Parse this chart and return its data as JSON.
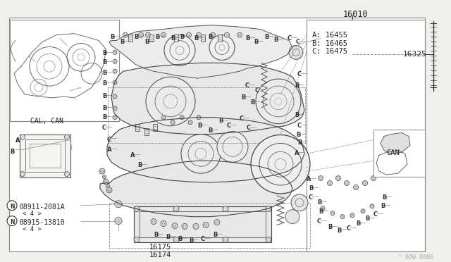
{
  "bg_color": "#ffffff",
  "outer_bg": "#f0f0eb",
  "title_number": "16010",
  "part_16325": "16325",
  "part_16455": "A: 16455",
  "part_16465": "B: 16465",
  "part_16475": "C: 16475",
  "part_16175": "16175",
  "part_16174": "16174",
  "part_08911": "08911-2081A",
  "part_08911_qty": "〈 4 〉",
  "part_08915": "08915-13810",
  "part_08915_qty": "〈 4 〉",
  "label_cal_can": "CAL, CAN",
  "label_can": "CAN",
  "watermark": "^ 60W 0006",
  "lc": "#333333",
  "tc": "#222222",
  "gray": "#888888",
  "ltgray": "#aaaaaa"
}
